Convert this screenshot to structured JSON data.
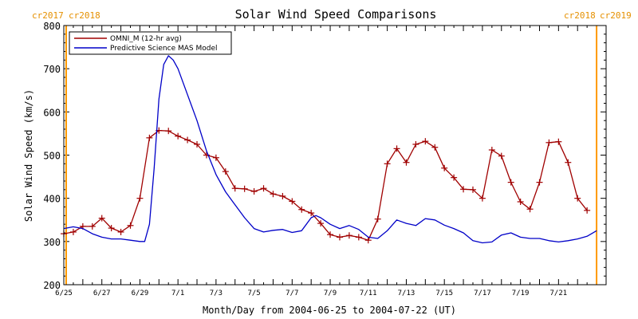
{
  "chart_data": {
    "type": "line",
    "title": "Solar Wind Speed Comparisons",
    "xlabel": "Month/Day from 2004-06-25 to 2004-07-22 (UT)",
    "ylabel": "Solar Wind Speed (km/s)",
    "xlim": [
      "2004-06-25",
      "2004-07-23T12:00"
    ],
    "ylim": [
      200,
      800
    ],
    "yticks": [
      200,
      300,
      400,
      500,
      600,
      700,
      800
    ],
    "xticks": [
      {
        "date": "2004-06-25",
        "label": "6/25"
      },
      {
        "date": "2004-06-27",
        "label": "6/27"
      },
      {
        "date": "2004-06-29",
        "label": "6/29"
      },
      {
        "date": "2004-07-01",
        "label": "7/1"
      },
      {
        "date": "2004-07-03",
        "label": "7/3"
      },
      {
        "date": "2004-07-05",
        "label": "7/5"
      },
      {
        "date": "2004-07-07",
        "label": "7/7"
      },
      {
        "date": "2004-07-09",
        "label": "7/9"
      },
      {
        "date": "2004-07-11",
        "label": "7/11"
      },
      {
        "date": "2004-07-13",
        "label": "7/13"
      },
      {
        "date": "2004-07-15",
        "label": "7/15"
      },
      {
        "date": "2004-07-17",
        "label": "7/17"
      },
      {
        "date": "2004-07-19",
        "label": "7/19"
      },
      {
        "date": "2004-07-21",
        "label": "7/21"
      }
    ],
    "legend": {
      "placement": "top-left",
      "entries": [
        {
          "name": "OMNI_M (12-hr avg)",
          "color": "#a00000"
        },
        {
          "name": "Predictive Science MAS Model",
          "color": "#0000c8"
        }
      ]
    },
    "rotation_markers": [
      {
        "date": "2004-06-25",
        "left_label": "cr2017",
        "right_label": "cr2018",
        "color": "#ff9900"
      },
      {
        "date": "2004-07-23",
        "left_label": "cr2018",
        "right_label": "cr2019",
        "color": "#ff9900"
      }
    ],
    "series": [
      {
        "name": "OMNI_M (12-hr avg)",
        "color": "#a00000",
        "marker": "plus",
        "points": [
          [
            "2004-06-25T00:00",
            318
          ],
          [
            "2004-06-25T12:00",
            322
          ],
          [
            "2004-06-26T00:00",
            335
          ],
          [
            "2004-06-26T12:00",
            335
          ],
          [
            "2004-06-27T00:00",
            354
          ],
          [
            "2004-06-27T12:00",
            331
          ],
          [
            "2004-06-28T00:00",
            322
          ],
          [
            "2004-06-28T12:00",
            337
          ],
          [
            "2004-06-29T00:00",
            400
          ],
          [
            "2004-06-29T12:00",
            540
          ],
          [
            "2004-06-30T00:00",
            557
          ],
          [
            "2004-06-30T12:00",
            556
          ],
          [
            "2004-07-01T00:00",
            544
          ],
          [
            "2004-07-01T12:00",
            535
          ],
          [
            "2004-07-02T00:00",
            525
          ],
          [
            "2004-07-02T12:00",
            500
          ],
          [
            "2004-07-03T00:00",
            494
          ],
          [
            "2004-07-03T12:00",
            462
          ],
          [
            "2004-07-04T00:00",
            423
          ],
          [
            "2004-07-04T12:00",
            422
          ],
          [
            "2004-07-05T00:00",
            416
          ],
          [
            "2004-07-05T12:00",
            423
          ],
          [
            "2004-07-06T00:00",
            410
          ],
          [
            "2004-07-06T12:00",
            405
          ],
          [
            "2004-07-07T00:00",
            393
          ],
          [
            "2004-07-07T12:00",
            374
          ],
          [
            "2004-07-08T00:00",
            366
          ],
          [
            "2004-07-08T12:00",
            342
          ],
          [
            "2004-07-09T00:00",
            316
          ],
          [
            "2004-07-09T12:00",
            310
          ],
          [
            "2004-07-10T00:00",
            314
          ],
          [
            "2004-07-10T12:00",
            310
          ],
          [
            "2004-07-11T00:00",
            303
          ],
          [
            "2004-07-11T12:00",
            352
          ],
          [
            "2004-07-12T00:00",
            480
          ],
          [
            "2004-07-12T12:00",
            515
          ],
          [
            "2004-07-13T00:00",
            483
          ],
          [
            "2004-07-13T12:00",
            525
          ],
          [
            "2004-07-14T00:00",
            532
          ],
          [
            "2004-07-14T12:00",
            518
          ],
          [
            "2004-07-15T00:00",
            470
          ],
          [
            "2004-07-15T12:00",
            448
          ],
          [
            "2004-07-16T00:00",
            421
          ],
          [
            "2004-07-16T12:00",
            420
          ],
          [
            "2004-07-17T00:00",
            400
          ],
          [
            "2004-07-17T12:00",
            512
          ],
          [
            "2004-07-18T00:00",
            498
          ],
          [
            "2004-07-18T12:00",
            437
          ],
          [
            "2004-07-19T00:00",
            392
          ],
          [
            "2004-07-19T12:00",
            375
          ],
          [
            "2004-07-20T00:00",
            437
          ],
          [
            "2004-07-20T12:00",
            529
          ],
          [
            "2004-07-21T00:00",
            531
          ],
          [
            "2004-07-21T12:00",
            483
          ],
          [
            "2004-07-22T00:00",
            400
          ],
          [
            "2004-07-22T12:00",
            372
          ]
        ]
      },
      {
        "name": "Predictive Science MAS Model",
        "color": "#0000c8",
        "marker": "none",
        "points": [
          [
            "2004-06-25T00:00",
            330
          ],
          [
            "2004-06-25T12:00",
            334
          ],
          [
            "2004-06-26T00:00",
            330
          ],
          [
            "2004-06-26T12:00",
            318
          ],
          [
            "2004-06-27T00:00",
            310
          ],
          [
            "2004-06-27T12:00",
            306
          ],
          [
            "2004-06-28T00:00",
            306
          ],
          [
            "2004-06-28T12:00",
            303
          ],
          [
            "2004-06-29T00:00",
            300
          ],
          [
            "2004-06-29T06:00",
            300
          ],
          [
            "2004-06-29T12:00",
            340
          ],
          [
            "2004-06-29T18:00",
            470
          ],
          [
            "2004-06-30T00:00",
            630
          ],
          [
            "2004-06-30T06:00",
            710
          ],
          [
            "2004-06-30T12:00",
            730
          ],
          [
            "2004-06-30T18:00",
            720
          ],
          [
            "2004-07-01T00:00",
            700
          ],
          [
            "2004-07-01T12:00",
            640
          ],
          [
            "2004-07-02T00:00",
            580
          ],
          [
            "2004-07-02T12:00",
            510
          ],
          [
            "2004-07-03T00:00",
            455
          ],
          [
            "2004-07-03T12:00",
            415
          ],
          [
            "2004-07-04T00:00",
            385
          ],
          [
            "2004-07-04T12:00",
            355
          ],
          [
            "2004-07-05T00:00",
            330
          ],
          [
            "2004-07-05T12:00",
            322
          ],
          [
            "2004-07-06T00:00",
            326
          ],
          [
            "2004-07-06T12:00",
            328
          ],
          [
            "2004-07-07T00:00",
            321
          ],
          [
            "2004-07-07T12:00",
            325
          ],
          [
            "2004-07-08T00:00",
            355
          ],
          [
            "2004-07-08T06:00",
            360
          ],
          [
            "2004-07-08T12:00",
            355
          ],
          [
            "2004-07-09T00:00",
            340
          ],
          [
            "2004-07-09T12:00",
            330
          ],
          [
            "2004-07-10T00:00",
            337
          ],
          [
            "2004-07-10T12:00",
            328
          ],
          [
            "2004-07-11T00:00",
            310
          ],
          [
            "2004-07-11T12:00",
            307
          ],
          [
            "2004-07-12T00:00",
            325
          ],
          [
            "2004-07-12T12:00",
            350
          ],
          [
            "2004-07-13T00:00",
            342
          ],
          [
            "2004-07-13T12:00",
            337
          ],
          [
            "2004-07-14T00:00",
            353
          ],
          [
            "2004-07-14T12:00",
            350
          ],
          [
            "2004-07-15T00:00",
            338
          ],
          [
            "2004-07-15T12:00",
            330
          ],
          [
            "2004-07-16T00:00",
            320
          ],
          [
            "2004-07-16T12:00",
            302
          ],
          [
            "2004-07-17T00:00",
            297
          ],
          [
            "2004-07-17T12:00",
            299
          ],
          [
            "2004-07-18T00:00",
            315
          ],
          [
            "2004-07-18T12:00",
            320
          ],
          [
            "2004-07-19T00:00",
            310
          ],
          [
            "2004-07-19T12:00",
            307
          ],
          [
            "2004-07-20T00:00",
            307
          ],
          [
            "2004-07-20T12:00",
            302
          ],
          [
            "2004-07-21T00:00",
            299
          ],
          [
            "2004-07-21T12:00",
            302
          ],
          [
            "2004-07-22T00:00",
            306
          ],
          [
            "2004-07-22T12:00",
            312
          ],
          [
            "2004-07-23T00:00",
            325
          ]
        ]
      }
    ]
  }
}
